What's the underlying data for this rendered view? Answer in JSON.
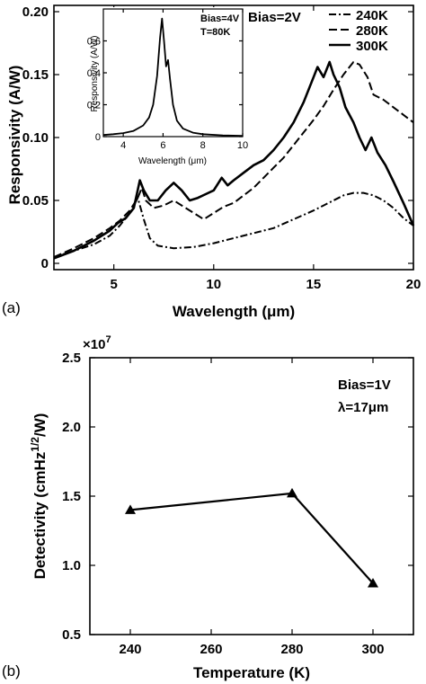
{
  "chart_data": [
    {
      "panel_label": "(a)",
      "type": "line",
      "xlabel": "Wavelength (μm)",
      "ylabel": "Responsivity (A/W)",
      "xlim": [
        2,
        20
      ],
      "ylim": [
        -0.005,
        0.205
      ],
      "xticks": [
        "5",
        "10",
        "15",
        "20"
      ],
      "xtick_values": [
        5,
        10,
        15,
        20
      ],
      "yticks": [
        "0",
        "0.05",
        "0.10",
        "0.15",
        "0.20"
      ],
      "ytick_values": [
        0,
        0.05,
        0.1,
        0.15,
        0.2
      ],
      "annotation": "Bias=2V",
      "legend_position": "top-right",
      "series": [
        {
          "name": "240K",
          "style": "dashdot",
          "x": [
            2,
            3,
            4,
            4.8,
            5.3,
            5.8,
            6.2,
            6.5,
            6.8,
            7.2,
            8,
            9,
            10,
            11,
            12,
            13,
            14,
            15,
            15.5,
            16,
            16.5,
            17,
            17.5,
            18,
            18.5,
            19,
            19.5,
            20
          ],
          "y": [
            0.005,
            0.01,
            0.015,
            0.022,
            0.03,
            0.04,
            0.052,
            0.035,
            0.02,
            0.014,
            0.012,
            0.013,
            0.016,
            0.02,
            0.024,
            0.028,
            0.035,
            0.042,
            0.046,
            0.05,
            0.054,
            0.056,
            0.056,
            0.054,
            0.05,
            0.044,
            0.036,
            0.03
          ]
        },
        {
          "name": "280K",
          "style": "dashed",
          "x": [
            2,
            3,
            4,
            4.8,
            5.3,
            5.8,
            6.2,
            6.4,
            6.6,
            7,
            7.5,
            8,
            8.5,
            9,
            9.5,
            10,
            10.5,
            11,
            11.5,
            12,
            12.5,
            13,
            13.5,
            14,
            14.5,
            15,
            15.5,
            16,
            16.5,
            17,
            17.3,
            17.7,
            18,
            18.5,
            19,
            19.5,
            20
          ],
          "y": [
            0.005,
            0.012,
            0.02,
            0.028,
            0.034,
            0.042,
            0.052,
            0.06,
            0.05,
            0.044,
            0.046,
            0.05,
            0.045,
            0.04,
            0.035,
            0.04,
            0.045,
            0.048,
            0.054,
            0.06,
            0.068,
            0.076,
            0.084,
            0.094,
            0.104,
            0.114,
            0.125,
            0.138,
            0.15,
            0.16,
            0.158,
            0.148,
            0.134,
            0.13,
            0.124,
            0.118,
            0.112
          ]
        },
        {
          "name": "300K",
          "style": "solid",
          "x": [
            2,
            3,
            4,
            4.8,
            5.2,
            5.6,
            6,
            6.3,
            6.5,
            6.8,
            7.2,
            7.6,
            8,
            8.4,
            8.8,
            9.2,
            9.6,
            10,
            10.4,
            10.7,
            11,
            11.5,
            12,
            12.5,
            13,
            13.5,
            14,
            14.5,
            15,
            15.2,
            15.5,
            15.8,
            16,
            16.3,
            16.6,
            17,
            17.3,
            17.6,
            17.9,
            18.2,
            18.6,
            19,
            19.5,
            20
          ],
          "y": [
            0.004,
            0.01,
            0.018,
            0.026,
            0.032,
            0.036,
            0.044,
            0.066,
            0.058,
            0.05,
            0.05,
            0.058,
            0.064,
            0.058,
            0.05,
            0.052,
            0.055,
            0.058,
            0.068,
            0.062,
            0.066,
            0.072,
            0.078,
            0.082,
            0.09,
            0.1,
            0.112,
            0.128,
            0.148,
            0.156,
            0.148,
            0.16,
            0.15,
            0.14,
            0.124,
            0.112,
            0.1,
            0.09,
            0.1,
            0.088,
            0.078,
            0.065,
            0.048,
            0.03
          ]
        }
      ],
      "inset": {
        "type": "line",
        "xlabel": "Wavelength (μm)",
        "ylabel": "Responsivity (A/W)",
        "xlim": [
          3,
          10
        ],
        "ylim": [
          0,
          0.8
        ],
        "xticks": [
          "4",
          "6",
          "8",
          "10"
        ],
        "xtick_values": [
          4,
          6,
          8,
          10
        ],
        "yticks": [
          "0",
          "0.2",
          "0.4",
          "0.6"
        ],
        "ytick_values": [
          0,
          0.2,
          0.4,
          0.6
        ],
        "annotation_lines": [
          "Bias=4V",
          "T=80K"
        ],
        "x": [
          3,
          3.5,
          4,
          4.5,
          5,
          5.3,
          5.5,
          5.7,
          5.85,
          5.95,
          6.05,
          6.15,
          6.25,
          6.35,
          6.5,
          6.7,
          7,
          7.5,
          8,
          9,
          10
        ],
        "y": [
          0.01,
          0.015,
          0.022,
          0.035,
          0.07,
          0.12,
          0.2,
          0.38,
          0.62,
          0.74,
          0.6,
          0.44,
          0.48,
          0.36,
          0.2,
          0.1,
          0.05,
          0.025,
          0.015,
          0.008,
          0.005
        ]
      }
    },
    {
      "panel_label": "(b)",
      "type": "line",
      "xlabel": "Temperature (K)",
      "ylabel": "Detectivity (cmHz¹ᐟ²/W)",
      "ylabel_parts": {
        "main": "Detectivity (cmHz",
        "sup": "1/2",
        "tail": "/W)"
      },
      "scale_factor": "×10",
      "scale_exponent": "7",
      "xlim": [
        230,
        310
      ],
      "ylim": [
        0.5,
        2.5
      ],
      "xticks": [
        "240",
        "260",
        "280",
        "300"
      ],
      "xtick_values": [
        240,
        260,
        280,
        300
      ],
      "yticks": [
        "0.5",
        "1.0",
        "1.5",
        "2.0",
        "2.5"
      ],
      "ytick_values": [
        0.5,
        1.0,
        1.5,
        2.0,
        2.5
      ],
      "annotation_lines": [
        "Bias=1V",
        "λ=17μm"
      ],
      "marker": "triangle",
      "x": [
        240,
        280,
        300
      ],
      "y": [
        1.4,
        1.52,
        0.87
      ]
    }
  ]
}
